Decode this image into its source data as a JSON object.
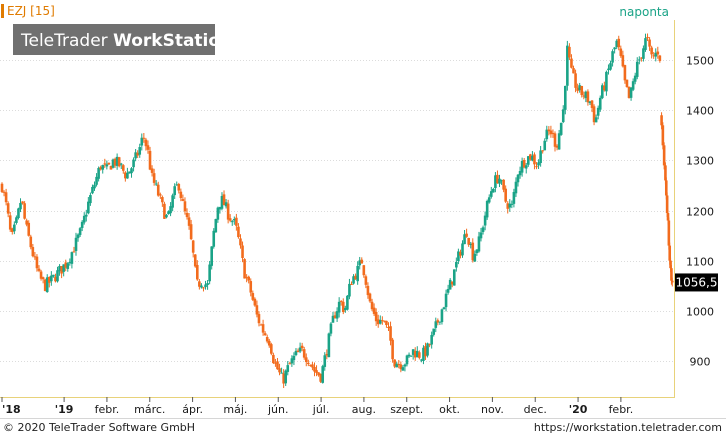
{
  "header": {
    "symbol": "EZJ [15]",
    "period": "naponta"
  },
  "watermark": {
    "part1": "TeleTrader ",
    "part2": "WorkStation"
  },
  "footer": {
    "copyright": "© 2020 TeleTrader Software GmbH",
    "url": "https://workstation.teletrader.com"
  },
  "colors": {
    "up": "#1aa387",
    "down": "#f26b1d",
    "accent": "#e07b00",
    "grid": "#dcdcdc",
    "last_box": "#000000",
    "axis_line": "#e8d27a",
    "watermark_bg": "#707070"
  },
  "chart_data": {
    "type": "candlestick",
    "x_axis": {
      "ticks": [
        "'18",
        "'19",
        "febr.",
        "márc.",
        "ápr.",
        "máj.",
        "jún.",
        "júl.",
        "aug.",
        "szept.",
        "okt.",
        "nov.",
        "dec.",
        "'20",
        "febr."
      ],
      "tick_pos": [
        0.0,
        1.45,
        2.45,
        3.45,
        4.45,
        5.45,
        6.45,
        7.45,
        8.45,
        9.45,
        10.45,
        11.45,
        12.45,
        13.45,
        14.45
      ],
      "range": [
        0,
        15.55
      ]
    },
    "y_axis": {
      "ticks": [
        "900",
        "1000",
        "1100",
        "1200",
        "1300",
        "1400",
        "1500"
      ],
      "tick_values": [
        900,
        1000,
        1100,
        1200,
        1300,
        1400,
        1500
      ],
      "range": [
        830,
        1580
      ],
      "position": "right"
    },
    "grid": true,
    "last_value": 1056.5,
    "last_label": "1056,5",
    "price_path": [
      [
        0.0,
        1250
      ],
      [
        0.12,
        1200
      ],
      [
        0.22,
        1140
      ],
      [
        0.35,
        1180
      ],
      [
        0.45,
        1225
      ],
      [
        0.55,
        1170
      ],
      [
        0.7,
        1120
      ],
      [
        0.85,
        1070
      ],
      [
        1.0,
        1050
      ],
      [
        1.15,
        1060
      ],
      [
        1.3,
        1075
      ],
      [
        1.5,
        1095
      ],
      [
        1.65,
        1120
      ],
      [
        1.85,
        1160
      ],
      [
        2.0,
        1210
      ],
      [
        2.15,
        1250
      ],
      [
        2.3,
        1290
      ],
      [
        2.45,
        1280
      ],
      [
        2.6,
        1300
      ],
      [
        2.75,
        1290
      ],
      [
        2.9,
        1270
      ],
      [
        3.05,
        1290
      ],
      [
        3.2,
        1320
      ],
      [
        3.3,
        1350
      ],
      [
        3.4,
        1320
      ],
      [
        3.5,
        1265
      ],
      [
        3.62,
        1240
      ],
      [
        3.75,
        1205
      ],
      [
        3.87,
        1180
      ],
      [
        4.0,
        1230
      ],
      [
        4.12,
        1255
      ],
      [
        4.25,
        1200
      ],
      [
        4.35,
        1170
      ],
      [
        4.45,
        1120
      ],
      [
        4.55,
        1050
      ],
      [
        4.65,
        1060
      ],
      [
        4.8,
        1050
      ],
      [
        4.95,
        1160
      ],
      [
        5.05,
        1215
      ],
      [
        5.15,
        1220
      ],
      [
        5.3,
        1190
      ],
      [
        5.45,
        1170
      ],
      [
        5.55,
        1130
      ],
      [
        5.65,
        1080
      ],
      [
        5.8,
        1040
      ],
      [
        5.95,
        990
      ],
      [
        6.1,
        960
      ],
      [
        6.25,
        940
      ],
      [
        6.35,
        900
      ],
      [
        6.45,
        880
      ],
      [
        6.55,
        860
      ],
      [
        6.7,
        890
      ],
      [
        6.85,
        910
      ],
      [
        7.0,
        920
      ],
      [
        7.15,
        905
      ],
      [
        7.3,
        880
      ],
      [
        7.45,
        870
      ],
      [
        7.6,
        930
      ],
      [
        7.75,
        990
      ],
      [
        7.9,
        1020
      ],
      [
        8.0,
        1000
      ],
      [
        8.15,
        1060
      ],
      [
        8.3,
        1080
      ],
      [
        8.4,
        1100
      ],
      [
        8.5,
        1060
      ],
      [
        8.6,
        1010
      ],
      [
        8.75,
        980
      ],
      [
        8.9,
        980
      ],
      [
        9.05,
        950
      ],
      [
        9.15,
        900
      ],
      [
        9.3,
        895
      ],
      [
        9.45,
        900
      ],
      [
        9.6,
        920
      ],
      [
        9.8,
        910
      ],
      [
        9.95,
        925
      ],
      [
        10.1,
        960
      ],
      [
        10.3,
        1010
      ],
      [
        10.5,
        1060
      ],
      [
        10.7,
        1120
      ],
      [
        10.85,
        1160
      ],
      [
        11.0,
        1110
      ],
      [
        11.15,
        1140
      ],
      [
        11.3,
        1200
      ],
      [
        11.45,
        1250
      ],
      [
        11.6,
        1270
      ],
      [
        11.75,
        1220
      ],
      [
        11.9,
        1205
      ],
      [
        12.05,
        1280
      ],
      [
        12.2,
        1300
      ],
      [
        12.35,
        1310
      ],
      [
        12.5,
        1290
      ],
      [
        12.65,
        1340
      ],
      [
        12.8,
        1360
      ],
      [
        12.95,
        1330
      ],
      [
        13.1,
        1395
      ],
      [
        13.2,
        1520
      ],
      [
        13.3,
        1470
      ],
      [
        13.45,
        1440
      ],
      [
        13.6,
        1430
      ],
      [
        13.75,
        1415
      ],
      [
        13.85,
        1375
      ],
      [
        13.95,
        1420
      ],
      [
        14.1,
        1460
      ],
      [
        14.25,
        1510
      ],
      [
        14.35,
        1535
      ],
      [
        14.45,
        1500
      ],
      [
        14.55,
        1450
      ],
      [
        14.65,
        1420
      ],
      [
        14.8,
        1480
      ],
      [
        14.95,
        1520
      ],
      [
        15.05,
        1545
      ],
      [
        15.15,
        1505
      ],
      [
        15.25,
        1510
      ],
      [
        15.32,
        1520
      ],
      [
        15.38,
        1500
      ]
    ],
    "tail": [
      [
        15.4,
        1370
      ],
      [
        15.43,
        1330
      ],
      [
        15.46,
        1290
      ],
      [
        15.49,
        1260
      ],
      [
        15.51,
        1230
      ],
      [
        15.53,
        1195
      ],
      [
        15.55,
        1180
      ],
      [
        15.57,
        1130
      ],
      [
        15.59,
        1100
      ],
      [
        15.61,
        1085
      ],
      [
        15.63,
        1060
      ],
      [
        15.65,
        1056.5
      ]
    ]
  }
}
